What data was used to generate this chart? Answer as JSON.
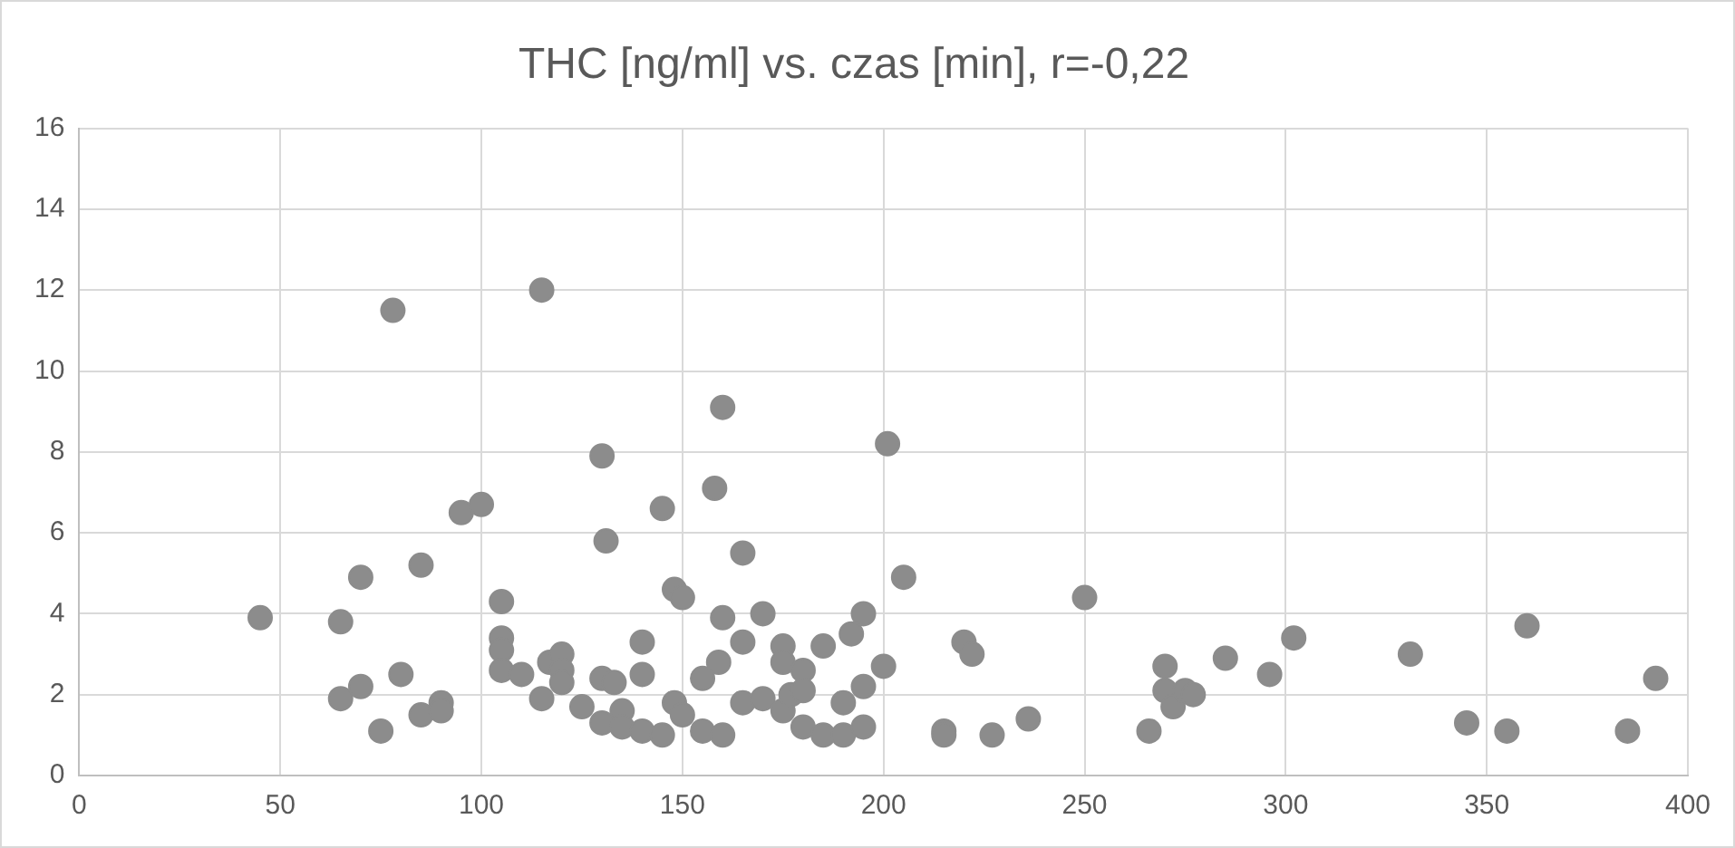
{
  "chart_data": {
    "type": "scatter",
    "title": "THC [ng/ml] vs. czas [min], r=-0,22",
    "marker": "circle",
    "grid": true,
    "legend": false,
    "xlim": [
      0,
      400
    ],
    "xticks": [
      0,
      50,
      100,
      150,
      200,
      250,
      300,
      350,
      400
    ],
    "ylim": [
      0,
      16
    ],
    "yticks": [
      0,
      2,
      4,
      6,
      8,
      10,
      12,
      14,
      16
    ],
    "series": [
      {
        "color": "#8c8c8c",
        "x": [
          45,
          65,
          65,
          70,
          70,
          75,
          78,
          80,
          85,
          85,
          90,
          90,
          95,
          100,
          105,
          105,
          105,
          105,
          110,
          115,
          115,
          117,
          120,
          120,
          120,
          125,
          130,
          130,
          130,
          131,
          133,
          135,
          135,
          140,
          140,
          140,
          145,
          145,
          148,
          148,
          150,
          150,
          155,
          155,
          158,
          159,
          160,
          160,
          160,
          165,
          165,
          165,
          170,
          170,
          175,
          175,
          175,
          177,
          180,
          180,
          180,
          185,
          185,
          190,
          190,
          192,
          195,
          195,
          195,
          200,
          201,
          205,
          215,
          215,
          220,
          222,
          227,
          236,
          250,
          266,
          270,
          270,
          272,
          275,
          277,
          285,
          296,
          302,
          331,
          345,
          355,
          360,
          385,
          392
        ],
        "values": [
          3.9,
          3.8,
          1.9,
          4.9,
          2.2,
          1.1,
          11.5,
          2.5,
          5.2,
          1.5,
          1.8,
          1.6,
          6.5,
          6.7,
          4.3,
          3.4,
          3.1,
          2.6,
          2.5,
          12,
          1.9,
          2.8,
          3.0,
          2.6,
          2.3,
          1.7,
          7.9,
          2.4,
          1.3,
          5.8,
          2.3,
          1.6,
          1.2,
          3.3,
          2.5,
          1.1,
          6.6,
          1.0,
          4.6,
          1.8,
          4.4,
          1.5,
          2.4,
          1.1,
          7.1,
          2.8,
          9.1,
          3.9,
          1.0,
          5.5,
          3.3,
          1.8,
          4.0,
          1.9,
          3.2,
          2.8,
          1.6,
          2.0,
          2.6,
          2.1,
          1.2,
          3.2,
          1.0,
          1.8,
          1.0,
          3.5,
          4.0,
          2.2,
          1.2,
          2.7,
          8.2,
          4.9,
          1.1,
          1.0,
          3.3,
          3.0,
          1.0,
          1.4,
          4.4,
          1.1,
          2.7,
          2.1,
          1.7,
          2.1,
          2.0,
          2.9,
          2.5,
          3.4,
          3.0,
          1.3,
          1.1,
          3.7,
          1.1,
          2.4
        ]
      }
    ]
  }
}
